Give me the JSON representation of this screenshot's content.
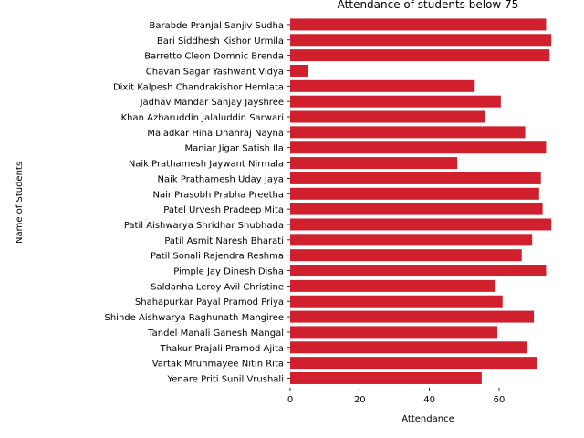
{
  "chart_data": {
    "type": "bar",
    "orientation": "horizontal",
    "title": "Attendance of students below 75",
    "xlabel": "Attendance",
    "ylabel": "Name of Students",
    "xlim": [
      0,
      76
    ],
    "xticks": [
      0,
      20,
      40,
      60
    ],
    "grid": false,
    "bar_color": "#d0202e",
    "categories": [
      "Barabde Pranjal  Sanjiv Sudha",
      "Bari Siddhesh Kishor Urmila",
      "Barretto Cleon Domnic Brenda",
      "Chavan Sagar Yashwant Vidya",
      "Dixit Kalpesh Chandrakishor Hemlata",
      "Jadhav Mandar Sanjay Jayshree",
      "Khan Azharuddin Jalaluddin Sarwari",
      "Maladkar Hina Dhanraj Nayna",
      "Maniar Jigar Satish Ila",
      "Naik Prathamesh Jaywant Nirmala",
      "Naik Prathamesh Uday Jaya",
      "Nair Prasobh Prabha Preetha",
      "Patel Urvesh Pradeep Mita",
      "Patil Aishwarya Shridhar Shubhada",
      "Patil Asmit Naresh Bharati",
      "Patil Sonali Rajendra Reshma",
      "Pimple Jay Dinesh Disha",
      "Saldanha Leroy Avil Christine",
      "Shahapurkar Payal Pramod Priya",
      "Shinde Aishwarya Raghunath Mangiree",
      "Tandel Manali Ganesh Mangal",
      "Thakur Prajali Pramod Ajita",
      "Vartak Mrunmayee Nitin Rita",
      "Yenare Priti Sunil Vrushali"
    ],
    "values": [
      73.5,
      75,
      74.5,
      5,
      53,
      60.5,
      56,
      67.5,
      73.5,
      48,
      72,
      71.5,
      72.5,
      75,
      69.5,
      66.5,
      73.5,
      59,
      61,
      70,
      59.5,
      68,
      71,
      55
    ]
  }
}
